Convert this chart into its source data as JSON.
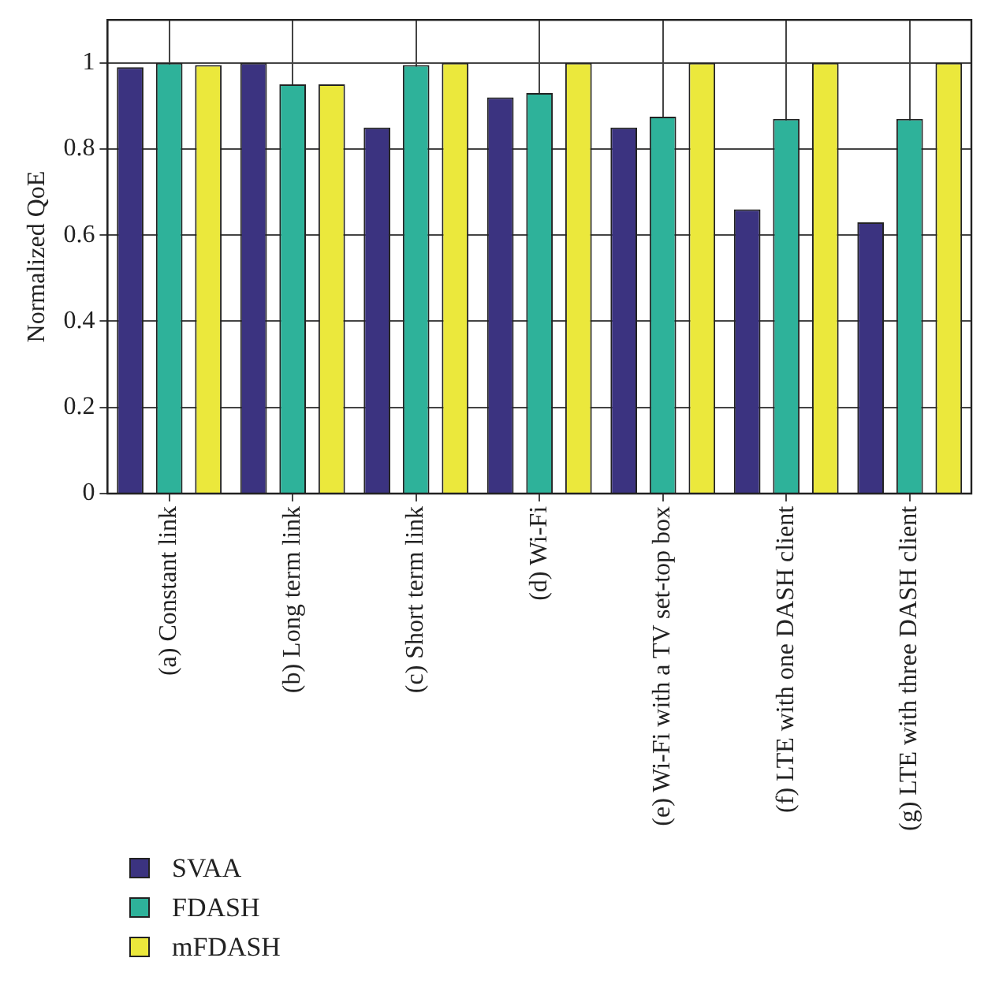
{
  "chart_data": {
    "type": "bar",
    "ylabel": "Normalized QoE",
    "categories": [
      "(a) Constant link",
      "(b) Long term link",
      "(c) Short term link",
      "(d) Wi-Fi",
      "(e) Wi-Fi with a TV set-top box",
      "(f) LTE with one DASH client",
      "(g) LTE with three DASH client"
    ],
    "series": [
      {
        "name": "SVAA",
        "color": "#3b3380",
        "values": [
          0.99,
          1.0,
          0.85,
          0.92,
          0.85,
          0.66,
          0.63
        ]
      },
      {
        "name": "FDASH",
        "color": "#2eb29a",
        "values": [
          1.0,
          0.95,
          0.995,
          0.93,
          0.875,
          0.87,
          0.87
        ]
      },
      {
        "name": "mFDASH",
        "color": "#ebe83c",
        "values": [
          0.995,
          0.95,
          1.0,
          1.0,
          1.0,
          1.0,
          1.0
        ]
      }
    ],
    "ylim": [
      0,
      1.1
    ],
    "yticks": [
      0,
      0.2,
      0.4,
      0.6,
      0.8,
      1
    ],
    "grid": true,
    "legend": "bottom left"
  }
}
